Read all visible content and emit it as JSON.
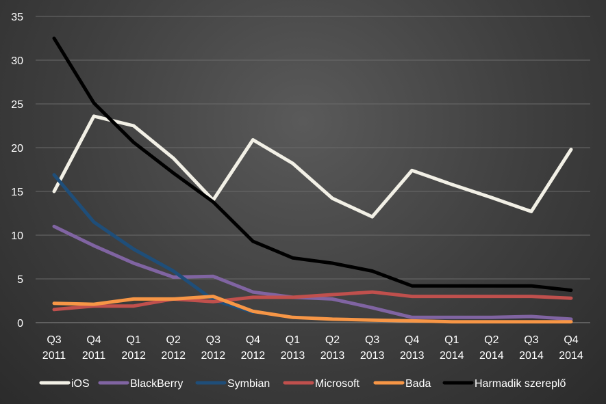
{
  "chart_data": {
    "type": "line",
    "title": "",
    "xlabel": "",
    "ylabel": "",
    "ylim": [
      0,
      35
    ],
    "yticks": [
      0,
      5,
      10,
      15,
      20,
      25,
      30,
      35
    ],
    "grid": true,
    "legend_position": "bottom",
    "categories": [
      [
        "Q3",
        "2011"
      ],
      [
        "Q4",
        "2011"
      ],
      [
        "Q1",
        "2012"
      ],
      [
        "Q2",
        "2012"
      ],
      [
        "Q3",
        "2012"
      ],
      [
        "Q4",
        "2012"
      ],
      [
        "Q1",
        "2013"
      ],
      [
        "Q2",
        "2013"
      ],
      [
        "Q3",
        "2013"
      ],
      [
        "Q4",
        "2013"
      ],
      [
        "Q1",
        "2014"
      ],
      [
        "Q2",
        "2014"
      ],
      [
        "Q3",
        "2014"
      ],
      [
        "Q4",
        "2014"
      ]
    ],
    "series": [
      {
        "name": "iOS",
        "color": "#f2f0e6",
        "values": [
          15.0,
          23.6,
          22.5,
          18.8,
          14.0,
          20.9,
          18.2,
          14.2,
          12.1,
          17.4,
          15.8,
          14.3,
          12.7,
          19.8
        ]
      },
      {
        "name": "BlackBerry",
        "color": "#8064a2",
        "values": [
          11.0,
          8.8,
          6.8,
          5.2,
          5.3,
          3.5,
          2.9,
          2.7,
          1.7,
          0.6,
          0.6,
          0.6,
          0.7,
          0.4
        ]
      },
      {
        "name": "Symbian",
        "color": "#1f4e79",
        "values": [
          16.9,
          11.5,
          8.4,
          5.9,
          2.6,
          1.2,
          null,
          null,
          null,
          null,
          null,
          null,
          null,
          null
        ]
      },
      {
        "name": "Microsoft",
        "color": "#c0504d",
        "values": [
          1.5,
          1.9,
          1.9,
          2.7,
          2.4,
          2.9,
          2.9,
          3.2,
          3.5,
          3.0,
          3.0,
          3.0,
          3.0,
          2.8
        ]
      },
      {
        "name": "Bada",
        "color": "#f79646",
        "values": [
          2.2,
          2.1,
          2.7,
          2.7,
          3.0,
          1.3,
          0.6,
          0.4,
          0.3,
          0.2,
          0.1,
          0.1,
          0.1,
          0.1
        ]
      },
      {
        "name": "Harmadik szereplő",
        "color": "#000000",
        "values": [
          32.5,
          25.1,
          20.6,
          17.1,
          13.8,
          9.3,
          7.4,
          6.8,
          5.9,
          4.2,
          4.2,
          4.2,
          4.2,
          3.7
        ]
      }
    ]
  }
}
